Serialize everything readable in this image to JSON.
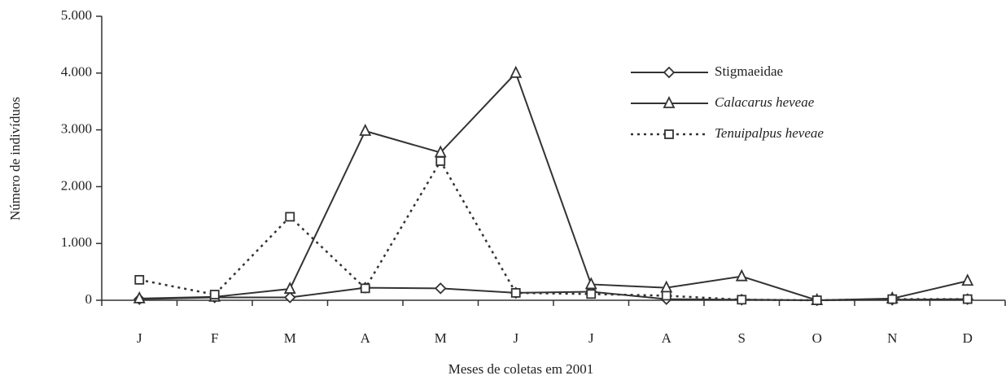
{
  "chart_data": {
    "type": "line",
    "x_label": "Meses de coletas em 2001",
    "y_label": "Número de indivíduos",
    "categories": [
      "J",
      "F",
      "M",
      "A",
      "M",
      "J",
      "J",
      "A",
      "S",
      "O",
      "N",
      "D"
    ],
    "ylim": [
      0,
      5000
    ],
    "yticks": [
      0,
      {
        "value": 1000,
        "label": "1.000"
      },
      {
        "value": 2000,
        "label": "2.000"
      },
      {
        "value": 3000,
        "label": "3.000"
      },
      {
        "value": 4000,
        "label": "4.000"
      },
      {
        "value": 5000,
        "label": "5.000"
      }
    ],
    "legend": "top-right",
    "series": [
      {
        "name": "Stigmaeidae",
        "color": "#333333",
        "line_style": "solid",
        "marker": "diamond",
        "italic": false,
        "values": [
          20,
          50,
          50,
          220,
          210,
          130,
          150,
          20,
          10,
          0,
          10,
          20
        ]
      },
      {
        "name": "Calacarus heveae",
        "color": "#333333",
        "line_style": "solid",
        "marker": "triangle",
        "italic": true,
        "values": [
          30,
          60,
          200,
          2980,
          2600,
          4000,
          280,
          220,
          420,
          0,
          30,
          340
        ]
      },
      {
        "name": "Tenuipalpus heveae",
        "color": "#333333",
        "line_style": "dotted",
        "marker": "square",
        "italic": true,
        "values": [
          360,
          100,
          1470,
          210,
          2450,
          130,
          110,
          80,
          10,
          0,
          20,
          20
        ]
      }
    ]
  }
}
